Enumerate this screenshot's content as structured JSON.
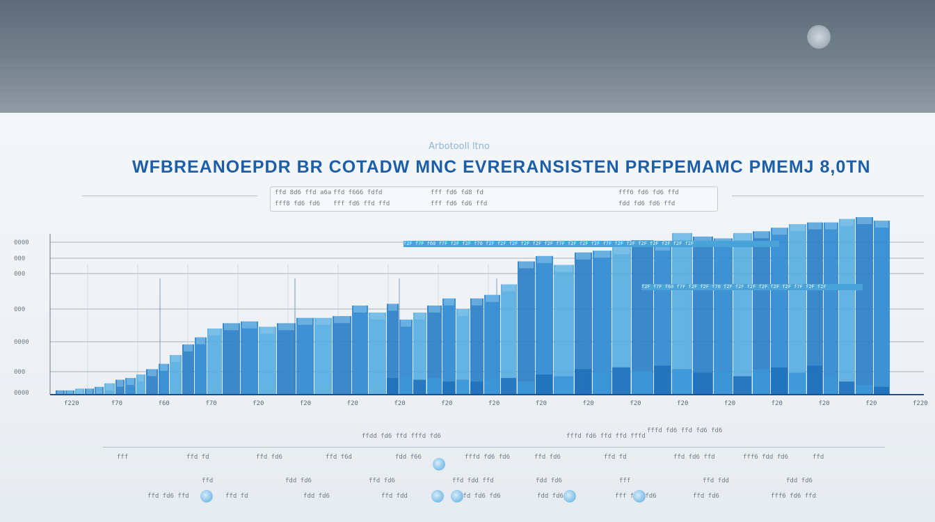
{
  "chart_data": {
    "type": "bar",
    "title": "WFBREANOEPDR BR COTADW MNC EVRERANSISTEN PRFPEMAMC PMEMJ 8,0TN",
    "subtitle": "Arbotooll ltno",
    "legend": [
      {
        "top": "ffd 8d6 ffd a6a",
        "bottom": "fff8 fd6 fd6"
      },
      {
        "top": "ffd f666 fdfd",
        "bottom": "fff fd6 ffd ffd"
      },
      {
        "top": "fff fd6 fd8 fd",
        "bottom": "fff fd6 fd6 ffd"
      },
      {
        "top": "fff6 fd6 fd6 ffd",
        "bottom": "fdd fd6 fd6 ffd"
      }
    ],
    "y_tick_labels": [
      "0000",
      "000",
      "000",
      "000",
      "0000",
      "000",
      "0000"
    ],
    "x_tick_labels": [
      "f220",
      "f70",
      "f60",
      "f70",
      "f20",
      "f20",
      "f20",
      "f20",
      "f20",
      "f20",
      "f20",
      "f20",
      "f20",
      "f20",
      "f20",
      "f20",
      "f20",
      "f20",
      "f220"
    ],
    "band_labels": [
      "f2F f7F f60 f7F f2F f2F f70 f2F f2F f2F f2F f2F f2F f7F f2F f2F f2F f7F f2F f2F f2F f2F f2F f2F f2F",
      "f2F f7F f60 f7F f2F f2F f70 f2F f2F f2F f2F f2F f2F f7F f2F f2F"
    ],
    "ylim": [
      0,
      100
    ],
    "x": [
      80,
      94,
      108,
      122,
      136,
      150,
      166,
      180,
      196,
      210,
      228,
      244,
      262,
      280,
      298,
      320,
      346,
      372,
      398,
      426,
      452,
      478,
      506,
      530,
      556,
      574,
      594,
      614,
      636,
      656,
      676,
      696,
      720,
      744,
      770,
      796,
      826,
      852,
      880,
      908,
      940,
      966,
      996,
      1026,
      1054,
      1082,
      1108,
      1134,
      1160,
      1184,
      1206,
      1230,
      1256
    ],
    "series": [
      {
        "values": [
          2,
          2,
          3,
          3,
          4,
          6,
          8,
          9,
          11,
          14,
          17,
          22,
          28,
          32,
          37,
          40,
          41,
          38,
          40,
          43,
          43,
          44,
          50,
          46,
          51,
          42,
          46,
          50,
          54,
          48,
          54,
          56,
          62,
          75,
          78,
          73,
          80,
          81,
          83,
          87,
          85,
          91,
          89,
          88,
          91,
          92,
          94,
          96,
          97,
          97,
          99,
          100,
          98
        ]
      },
      {
        "values": [
          0,
          0,
          0,
          0,
          0,
          0,
          0,
          0,
          0,
          0,
          0,
          0,
          0,
          0,
          0,
          0,
          0,
          0,
          0,
          0,
          0,
          0,
          0,
          0,
          9,
          10,
          8,
          9,
          7,
          8,
          7,
          8,
          9,
          7,
          11,
          10,
          14,
          12,
          15,
          13,
          16,
          14,
          12,
          13,
          10,
          14,
          15,
          12,
          16,
          10,
          7,
          5,
          4
        ]
      }
    ],
    "colors": {
      "primary": "#2b7fc6",
      "light": "#58aee0",
      "pale": "#8cc8ec",
      "axis": "#1b4f8a"
    }
  },
  "footer": {
    "row1": [
      {
        "text": "ffdd fd6 ffd fffd fd6",
        "col": 0
      },
      {
        "text": "fffd fd6 ffd ffd fffd",
        "col": 1
      },
      {
        "text": "fffd fd6 ffd fd6 fd6",
        "col": 2
      }
    ],
    "row2": [
      "fff",
      "ffd fd",
      "ffd fd6",
      "ffd f6d",
      "fdd f66",
      "fffd fd6 fd6",
      "ffd fd6",
      "ffd fd",
      "ffd fd6 ffd",
      "fff6 fdd fd6",
      "ffd"
    ],
    "row3": [
      "ffd",
      "fdd fd6",
      "ffd fd6",
      "ffd fdd ffd",
      "fdd fd6",
      "fff",
      "ffd fdd",
      "fdd fd6"
    ],
    "row4": [
      "ffd fd6 ffd",
      "ffd fd",
      "fdd fd6",
      "ffd fdd",
      "ffd fd6 fd6",
      "fdd fd6",
      "fff fd6 fd6",
      "ffd fd6",
      "fff6 fd6 ffd"
    ]
  }
}
